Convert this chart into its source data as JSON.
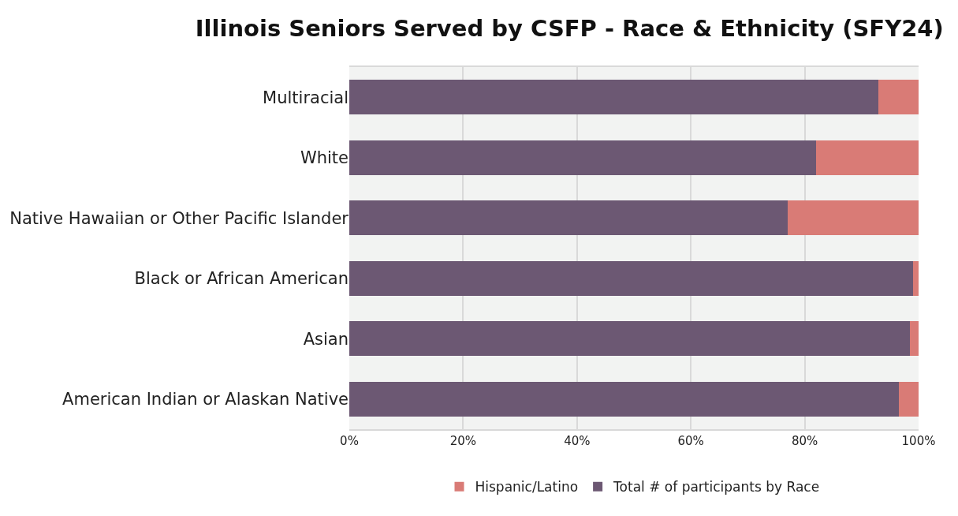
{
  "chart_data": {
    "type": "bar",
    "title": "Illinois Seniors Served by CSFP - Race & Ethnicity (SFY24)",
    "orientation": "horizontal",
    "stacked": true,
    "categories": [
      "Multiracial",
      "White",
      "Native Hawaiian or Other Pacific Islander",
      "Black or African American",
      "Asian",
      "American Indian or Alaskan Native"
    ],
    "series": [
      {
        "name": "Total # of participants by Race",
        "color": "#6c5873",
        "values": [
          93,
          82,
          77,
          99,
          98.5,
          96.5
        ]
      },
      {
        "name": "Hispanic/Latino",
        "color": "#d97b76",
        "values": [
          7,
          18,
          23,
          1,
          1.5,
          3.5
        ]
      }
    ],
    "xlim": [
      0,
      100
    ],
    "xticks": [
      {
        "value": 0,
        "label": "0%"
      },
      {
        "value": 20,
        "label": "20%"
      },
      {
        "value": 40,
        "label": "40%"
      },
      {
        "value": 60,
        "label": "60%"
      },
      {
        "value": 80,
        "label": "80%"
      },
      {
        "value": 100,
        "label": "100%"
      }
    ],
    "grid": "x",
    "legend": "bottom"
  }
}
